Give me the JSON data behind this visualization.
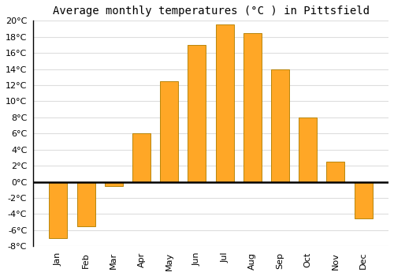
{
  "title": "Average monthly temperatures (°C ) in Pittsfield",
  "months": [
    "Jan",
    "Feb",
    "Mar",
    "Apr",
    "May",
    "Jun",
    "Jul",
    "Aug",
    "Sep",
    "Oct",
    "Nov",
    "Dec"
  ],
  "temperatures": [
    -7,
    -5.5,
    -0.5,
    6,
    12.5,
    17,
    19.5,
    18.5,
    14,
    8,
    2.5,
    -4.5
  ],
  "bar_color": "#FFA726",
  "bar_edge_color": "#B8860B",
  "ylim": [
    -8,
    20
  ],
  "yticks": [
    -8,
    -6,
    -4,
    -2,
    0,
    2,
    4,
    6,
    8,
    10,
    12,
    14,
    16,
    18,
    20
  ],
  "background_color": "#ffffff",
  "plot_bg_color": "#ffffff",
  "grid_color": "#dddddd",
  "title_fontsize": 10,
  "bar_width": 0.65
}
